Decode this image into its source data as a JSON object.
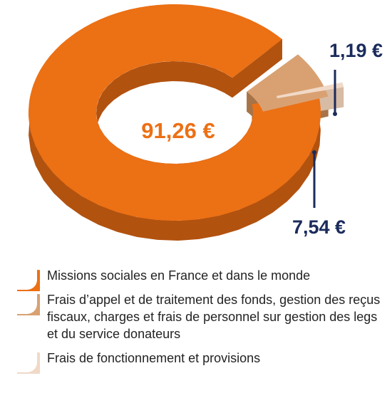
{
  "chart_data": {
    "type": "pie",
    "title": "",
    "center_label": "91,26 €",
    "slices": [
      {
        "value": 91.26,
        "label": "91,26 €",
        "legend": "Missions sociales en France et dans le monde",
        "color": "#EC7014",
        "side": "#B2520F"
      },
      {
        "value": 7.54,
        "label": "7,54 €",
        "legend": "Frais d’appel et de traitement des fonds, gestion des reçus fiscaux, charges et frais de personnel sur gestion des legs et du service donateurs",
        "color": "#D9A172",
        "side": "#A77348"
      },
      {
        "value": 1.19,
        "label": "1,19 €",
        "legend": "Frais de fonctionnement et provisions",
        "color": "#F1D9C7",
        "side": "#D7BBA5"
      }
    ],
    "colors": {
      "label": "#1B2B5C",
      "center": "#EC7014",
      "leader": "#1B2B5C"
    }
  }
}
